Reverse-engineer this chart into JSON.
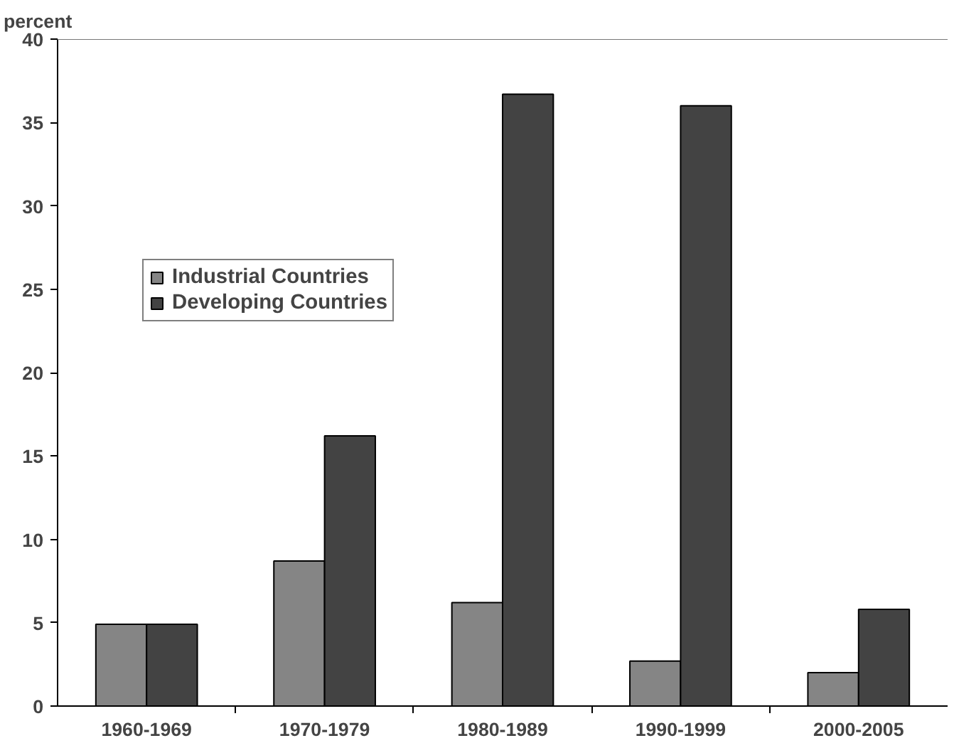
{
  "chart_data": {
    "type": "bar",
    "ylabel": "percent",
    "categories": [
      "1960-1969",
      "1970-1979",
      "1980-1989",
      "1990-1999",
      "2000-2005"
    ],
    "series": [
      {
        "name": "Industrial Countries",
        "color": "#858585",
        "values": [
          4.9,
          8.7,
          6.2,
          2.7,
          2.0
        ]
      },
      {
        "name": "Developing Countries",
        "color": "#434343",
        "values": [
          4.9,
          16.2,
          36.7,
          36.0,
          5.8
        ]
      }
    ],
    "ylim": [
      0,
      40
    ],
    "yticks": [
      0,
      5,
      10,
      15,
      20,
      25,
      30,
      35,
      40
    ],
    "grid": false,
    "legend": "top left"
  }
}
